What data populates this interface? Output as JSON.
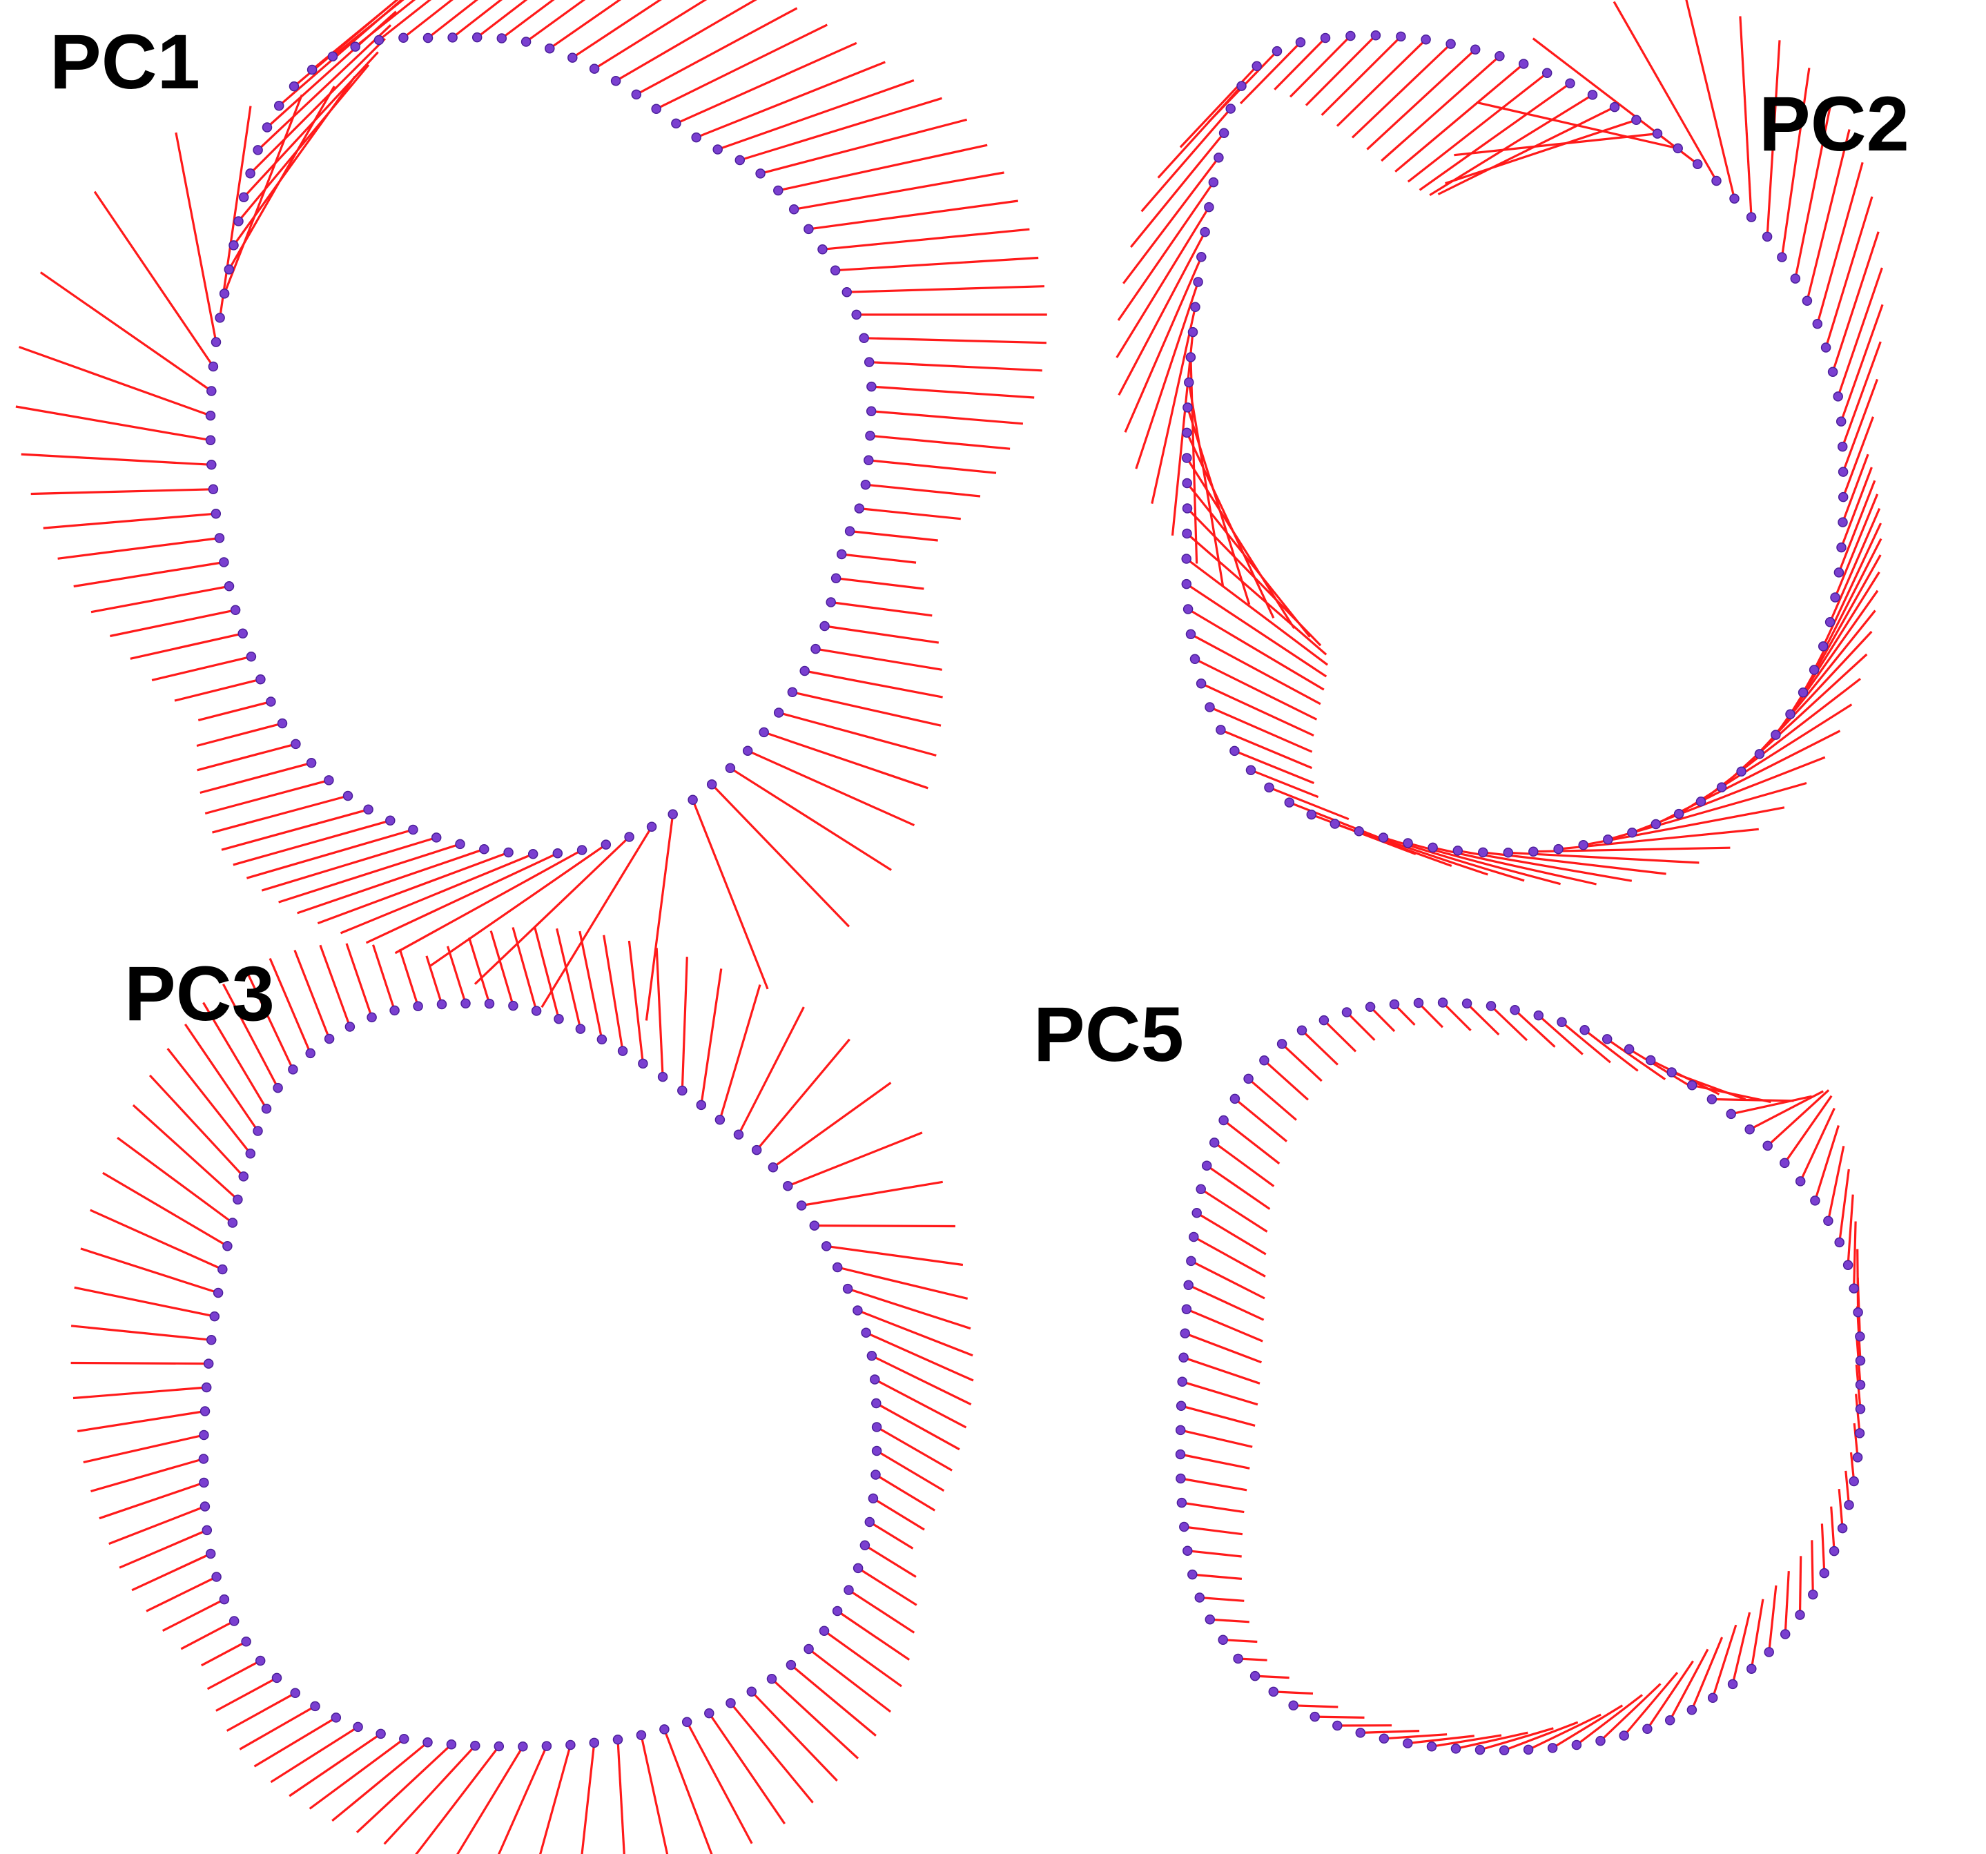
{
  "colors": {
    "background": "#ffffff",
    "vector": "#ff1a1a",
    "landmark": "#7a3fd0",
    "landmark_edge": "#4b1f9a",
    "label": "#000000"
  },
  "panels": [
    {
      "id": "pc1",
      "label": "PC1",
      "landmarks": 96
    },
    {
      "id": "pc2",
      "label": "PC2",
      "landmarks": 96
    },
    {
      "id": "pc3",
      "label": "PC3",
      "landmarks": 96
    },
    {
      "id": "pc5",
      "label": "PC5",
      "landmarks": 96
    }
  ]
}
